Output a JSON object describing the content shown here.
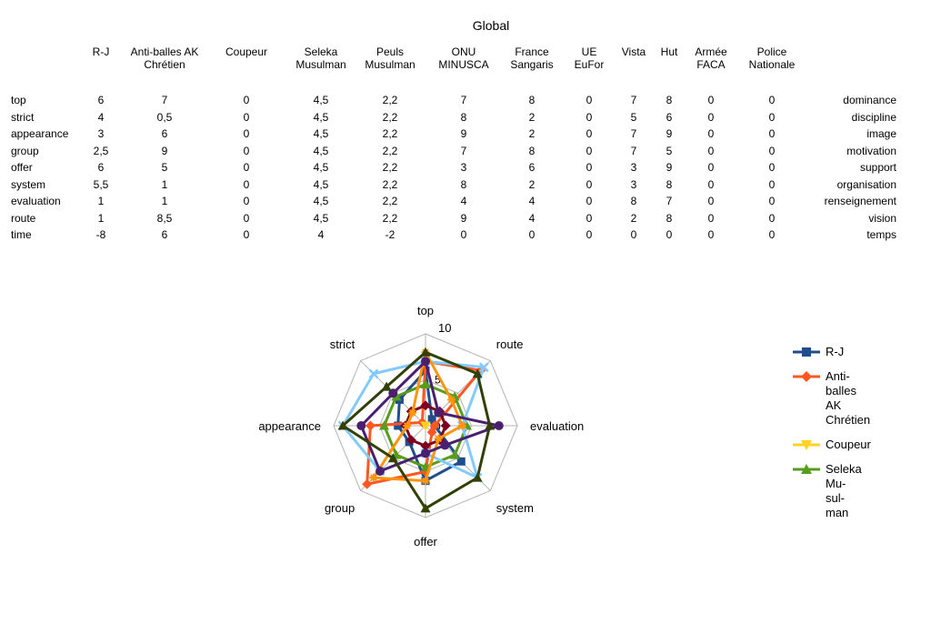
{
  "title": "Global",
  "table": {
    "columns": [
      "R-J",
      "Anti-balles AK Chrétien",
      "Coupeur",
      "Seleka Musulman",
      "Peuls Musulman",
      "ONU MINUSCA",
      "France Sangaris",
      "UE EuFor",
      "Vista",
      "Hut",
      "Armée FACA",
      "Police Nationale"
    ],
    "column_lines": [
      [
        "R-J"
      ],
      [
        "Anti-balles AK",
        "Chrétien"
      ],
      [
        "Coupeur"
      ],
      [
        "Seleka",
        "Musulman"
      ],
      [
        "Peuls",
        "Musulman"
      ],
      [
        "ONU",
        "MINUSCA"
      ],
      [
        "France",
        "Sangaris"
      ],
      [
        "UE",
        "EuFor"
      ],
      [
        "Vista"
      ],
      [
        "Hut"
      ],
      [
        "Armée",
        "FACA"
      ],
      [
        "Police",
        "Nationale"
      ]
    ],
    "rows": [
      {
        "label": "top",
        "right": "dominance",
        "values": [
          "6",
          "7",
          "0",
          "4,5",
          "2,2",
          "7",
          "8",
          "0",
          "7",
          "8",
          "0",
          "0"
        ]
      },
      {
        "label": "strict",
        "right": "discipline",
        "values": [
          "4",
          "0,5",
          "0",
          "4,5",
          "2,2",
          "8",
          "2",
          "0",
          "5",
          "6",
          "0",
          "0"
        ]
      },
      {
        "label": "appearance",
        "right": "image",
        "values": [
          "3",
          "6",
          "0",
          "4,5",
          "2,2",
          "9",
          "2",
          "0",
          "7",
          "9",
          "0",
          "0"
        ]
      },
      {
        "label": "group",
        "right": "motivation",
        "values": [
          "2,5",
          "9",
          "0",
          "4,5",
          "2,2",
          "7",
          "8",
          "0",
          "7",
          "5",
          "0",
          "0"
        ]
      },
      {
        "label": "offer",
        "right": "support",
        "values": [
          "6",
          "5",
          "0",
          "4,5",
          "2,2",
          "3",
          "6",
          "0",
          "3",
          "9",
          "0",
          "0"
        ]
      },
      {
        "label": "system",
        "right": "organisation",
        "values": [
          "5,5",
          "1",
          "0",
          "4,5",
          "2,2",
          "8",
          "2",
          "0",
          "3",
          "8",
          "0",
          "0"
        ]
      },
      {
        "label": "evaluation",
        "right": "renseignement",
        "values": [
          "1",
          "1",
          "0",
          "4,5",
          "2,2",
          "4",
          "4",
          "0",
          "8",
          "7",
          "0",
          "0"
        ]
      },
      {
        "label": "route",
        "right": "vision",
        "values": [
          "1",
          "8,5",
          "0",
          "4,5",
          "2,2",
          "9",
          "4",
          "0",
          "2",
          "8",
          "0",
          "0"
        ]
      },
      {
        "label": "time",
        "right": "temps",
        "values": [
          "-8",
          "6",
          "0",
          "4",
          "-2",
          "0",
          "0",
          "0",
          "0",
          "0",
          "0",
          "0"
        ]
      }
    ]
  },
  "chart_data": {
    "type": "radar",
    "axes": [
      "top",
      "route",
      "evaluation",
      "system",
      "offer",
      "group",
      "appearance",
      "strict"
    ],
    "rmax": 10,
    "rmax_label": "10",
    "mid_label": "5",
    "zero_label": "0",
    "series": [
      {
        "name": "R-J",
        "color": "#1f4e8c",
        "marker": "square",
        "values": [
          6,
          1,
          1,
          5.5,
          6,
          2.5,
          3,
          4
        ]
      },
      {
        "name": "Anti-balles AK Chrétien",
        "color": "#ff5722",
        "marker": "diamond",
        "values": [
          7,
          8.5,
          1,
          1,
          5,
          9,
          6,
          0.5
        ]
      },
      {
        "name": "Coupeur",
        "color": "#ffd320",
        "marker": "triangle-down",
        "values": [
          0,
          0,
          0,
          0,
          0,
          0,
          0,
          0
        ]
      },
      {
        "name": "Seleka Musulman",
        "color": "#579d1c",
        "marker": "triangle",
        "values": [
          4.5,
          4.5,
          4.5,
          4.5,
          4.5,
          4.5,
          4.5,
          4.5
        ]
      },
      {
        "name": "Peuls Musulman",
        "color": "#7e0021",
        "marker": "diamond",
        "values": [
          2.2,
          2.2,
          2.2,
          2.2,
          2.2,
          2.2,
          2.2,
          2.2
        ]
      },
      {
        "name": "ONU MINUSCA",
        "color": "#83caff",
        "marker": "cross",
        "values": [
          7,
          9,
          4,
          8,
          3,
          7,
          9,
          8
        ]
      },
      {
        "name": "France Sangaris",
        "color": "#ff950e",
        "marker": "star",
        "values": [
          8,
          4,
          4,
          2,
          6,
          8,
          2,
          2
        ]
      },
      {
        "name": "Vista",
        "color": "#4b1f6f",
        "marker": "circle",
        "values": [
          7,
          2,
          8,
          3,
          3,
          7,
          7,
          5
        ]
      },
      {
        "name": "Hut",
        "color": "#314004",
        "marker": "triangle",
        "values": [
          8,
          8,
          7,
          8,
          9,
          5,
          9,
          6
        ]
      }
    ],
    "legend_entries": [
      {
        "lines": [
          "R-J"
        ],
        "color": "#1f4e8c",
        "marker": "square"
      },
      {
        "lines": [
          "Anti-",
          "balles",
          "AK",
          "Chrétien"
        ],
        "color": "#ff5722",
        "marker": "diamond"
      },
      {
        "lines": [
          "Coupeur"
        ],
        "color": "#ffd320",
        "marker": "triangle-down"
      },
      {
        "lines": [
          "Seleka",
          "Mu-",
          "sul-",
          "man"
        ],
        "color": "#579d1c",
        "marker": "triangle"
      }
    ]
  }
}
